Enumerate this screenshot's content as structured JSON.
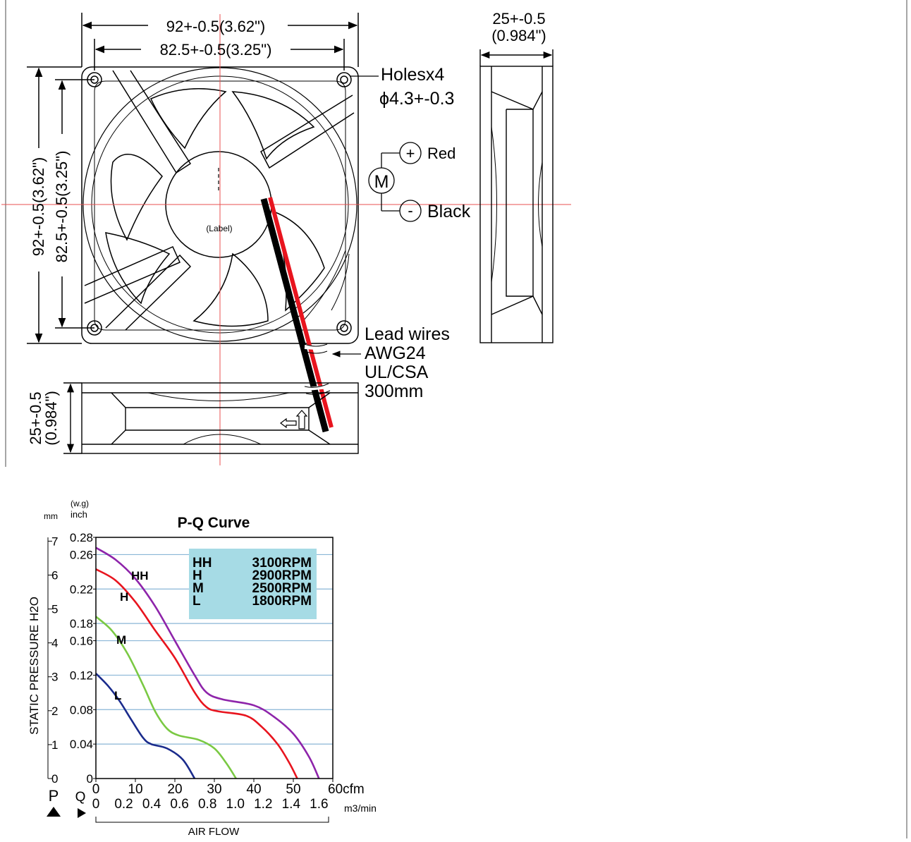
{
  "drawing": {
    "width_dim": "92+-0.5(3.62\")",
    "hole_pitch_dim": "82.5+-0.5(3.25\")",
    "height_dim": "92+-0.5(3.62\")",
    "height_hole_dim": "82.5+-0.5(3.25\")",
    "depth_dim_top": "25+-0.5",
    "depth_dim_top_inch": "(0.984\")",
    "depth_dim_bottom": "25+-0.5",
    "depth_dim_bottom_inch": "(0.984\")",
    "holes_label": "Holesx4",
    "holes_size": "ϕ4.3+-0.3",
    "label_text": "(Label)",
    "motor_symbol": "M",
    "plus_symbol": "+",
    "minus_symbol": "-",
    "red_label": "Red",
    "black_label": "Black",
    "lead_wires": "Lead wires",
    "awg": "AWG24",
    "ul": "UL/CSA",
    "length": "300mm",
    "colors": {
      "red_wire": "#e8141e",
      "black_wire": "#000000",
      "centerline": "#e85050"
    }
  },
  "chart_data": {
    "type": "line",
    "title": "P-Q Curve",
    "xlabel": "AIR FLOW",
    "ylabel": "STATIC PRESSURE H2O",
    "x_unit_primary": "cfm",
    "x_unit_secondary": "m3/min",
    "y_unit_mm": "mm",
    "y_unit_inch_top": "(w.g)",
    "y_unit_inch": "inch",
    "p_label": "P",
    "q_label": "Q",
    "xlim": [
      0,
      60
    ],
    "ylim": [
      0,
      0.28
    ],
    "x_ticks_cfm": [
      "0",
      "10",
      "20",
      "30",
      "40",
      "50",
      "60cfm"
    ],
    "x_ticks_m3": [
      "0",
      "0.2",
      "0.4",
      "0.6",
      "0.8",
      "1.0",
      "1.2",
      "1.4",
      "1.6"
    ],
    "y_ticks_inch": [
      "0",
      "0.04",
      "0.08",
      "0.12",
      "0.16",
      "0.18",
      "0.22",
      "0.26",
      "0.28"
    ],
    "y_ticks_inch_values": [
      0,
      0.04,
      0.08,
      0.12,
      0.16,
      0.18,
      0.22,
      0.26,
      0.28
    ],
    "y_ticks_mm": [
      "0",
      "1",
      "2",
      "3",
      "4",
      "5",
      "6",
      "7"
    ],
    "grid": true,
    "legend": {
      "placement": "top-right",
      "rows": [
        {
          "code": "HH",
          "rpm": "3100RPM"
        },
        {
          "code": "H",
          "rpm": "2900RPM"
        },
        {
          "code": "M",
          "rpm": "2500RPM"
        },
        {
          "code": "L",
          "rpm": "1800RPM"
        }
      ]
    },
    "series": [
      {
        "name": "HH",
        "color": "#8e24aa",
        "x": [
          0,
          5,
          10,
          15,
          20,
          25,
          28,
          32,
          40,
          45,
          50,
          54,
          56.5
        ],
        "y": [
          0.268,
          0.254,
          0.232,
          0.2,
          0.16,
          0.12,
          0.1,
          0.092,
          0.085,
          0.072,
          0.052,
          0.025,
          0
        ]
      },
      {
        "name": "H",
        "color": "#e8141e",
        "x": [
          0,
          5,
          10,
          15,
          20,
          25,
          28,
          31,
          38,
          42,
          46,
          49,
          51
        ],
        "y": [
          0.243,
          0.23,
          0.205,
          0.172,
          0.14,
          0.1,
          0.083,
          0.078,
          0.073,
          0.06,
          0.04,
          0.018,
          0
        ]
      },
      {
        "name": "M",
        "color": "#7ac943",
        "x": [
          0,
          4,
          8,
          12,
          15,
          18,
          21,
          26,
          30,
          33,
          35.5
        ],
        "y": [
          0.188,
          0.172,
          0.145,
          0.108,
          0.078,
          0.058,
          0.05,
          0.045,
          0.035,
          0.018,
          0
        ]
      },
      {
        "name": "L",
        "color": "#1a2b8c",
        "x": [
          0,
          3,
          6,
          9,
          12,
          14,
          18,
          22,
          25
        ],
        "y": [
          0.122,
          0.108,
          0.09,
          0.068,
          0.047,
          0.04,
          0.035,
          0.022,
          0
        ]
      }
    ]
  }
}
